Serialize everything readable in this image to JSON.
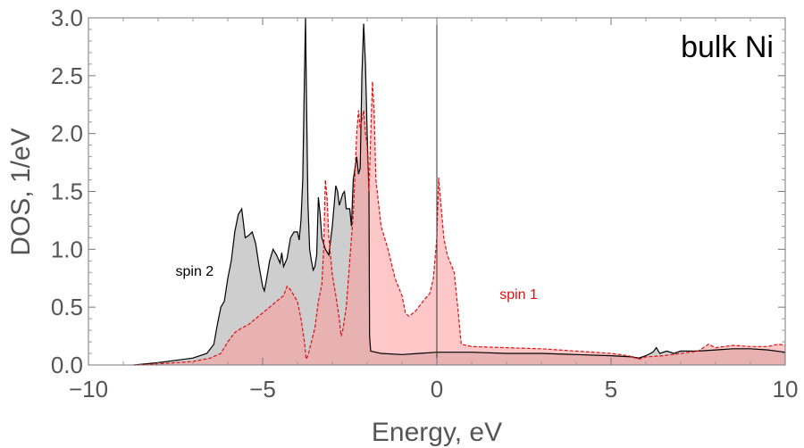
{
  "chart_data": {
    "type": "area",
    "title": "bulk Ni",
    "xlabel": "Energy, eV",
    "ylabel": "DOS, 1/eV",
    "xlim": [
      -10,
      10
    ],
    "ylim": [
      0,
      3.0
    ],
    "x_ticks": [
      -10,
      -5,
      0,
      5,
      10
    ],
    "x_tick_labels": [
      "−10",
      "−5",
      "0",
      "5",
      "10"
    ],
    "y_ticks": [
      0.0,
      0.5,
      1.0,
      1.5,
      2.0,
      2.5,
      3.0
    ],
    "y_tick_labels": [
      "0.0",
      "0.5",
      "1.0",
      "1.5",
      "2.0",
      "2.5",
      "3.0"
    ],
    "grid": false,
    "fermi_line_x": 0,
    "series": [
      {
        "name": "spin 2",
        "line_color": "#000000",
        "line_style": "solid",
        "fill_color": "#a6a6a6",
        "points": [
          [
            -8.7,
            0.0
          ],
          [
            -8.0,
            0.02
          ],
          [
            -7.5,
            0.04
          ],
          [
            -7.0,
            0.06
          ],
          [
            -6.6,
            0.1
          ],
          [
            -6.4,
            0.18
          ],
          [
            -6.3,
            0.35
          ],
          [
            -6.2,
            0.5
          ],
          [
            -6.1,
            0.55
          ],
          [
            -6.0,
            0.75
          ],
          [
            -5.9,
            0.9
          ],
          [
            -5.8,
            1.15
          ],
          [
            -5.7,
            1.3
          ],
          [
            -5.6,
            1.35
          ],
          [
            -5.5,
            1.1
          ],
          [
            -5.4,
            1.12
          ],
          [
            -5.3,
            1.15
          ],
          [
            -5.2,
            1.05
          ],
          [
            -5.1,
            0.85
          ],
          [
            -5.0,
            0.68
          ],
          [
            -4.95,
            0.64
          ],
          [
            -4.9,
            0.72
          ],
          [
            -4.8,
            0.9
          ],
          [
            -4.7,
            1.0
          ],
          [
            -4.6,
            0.95
          ],
          [
            -4.5,
            0.88
          ],
          [
            -4.45,
            0.97
          ],
          [
            -4.4,
            0.85
          ],
          [
            -4.3,
            0.92
          ],
          [
            -4.2,
            1.1
          ],
          [
            -4.1,
            1.15
          ],
          [
            -4.0,
            1.15
          ],
          [
            -3.95,
            1.08
          ],
          [
            -3.9,
            1.25
          ],
          [
            -3.85,
            1.6
          ],
          [
            -3.8,
            2.5
          ],
          [
            -3.77,
            3.0
          ],
          [
            -3.74,
            2.3
          ],
          [
            -3.7,
            1.4
          ],
          [
            -3.65,
            1.0
          ],
          [
            -3.6,
            0.9
          ],
          [
            -3.55,
            0.82
          ],
          [
            -3.5,
            0.85
          ],
          [
            -3.45,
            0.95
          ],
          [
            -3.4,
            1.45
          ],
          [
            -3.35,
            1.3
          ],
          [
            -3.3,
            1.1
          ],
          [
            -3.2,
            1.0
          ],
          [
            -3.1,
            0.95
          ],
          [
            -3.0,
            1.2
          ],
          [
            -2.9,
            1.55
          ],
          [
            -2.85,
            1.5
          ],
          [
            -2.8,
            1.38
          ],
          [
            -2.7,
            1.48
          ],
          [
            -2.65,
            1.5
          ],
          [
            -2.6,
            1.35
          ],
          [
            -2.5,
            1.35
          ],
          [
            -2.45,
            1.2
          ],
          [
            -2.4,
            1.6
          ],
          [
            -2.3,
            1.8
          ],
          [
            -2.25,
            1.65
          ],
          [
            -2.2,
            1.7
          ],
          [
            -2.15,
            2.5
          ],
          [
            -2.1,
            2.95
          ],
          [
            -2.05,
            2.6
          ],
          [
            -2.0,
            2.0
          ],
          [
            -1.95,
            1.5
          ],
          [
            -1.93,
            0.25
          ],
          [
            -1.9,
            0.12
          ],
          [
            -1.6,
            0.1
          ],
          [
            -1.0,
            0.09
          ],
          [
            -0.5,
            0.1
          ],
          [
            0.0,
            0.11
          ],
          [
            0.5,
            0.11
          ],
          [
            1.0,
            0.11
          ],
          [
            2.0,
            0.1
          ],
          [
            3.0,
            0.1
          ],
          [
            4.0,
            0.09
          ],
          [
            5.0,
            0.08
          ],
          [
            5.6,
            0.07
          ],
          [
            5.8,
            0.06
          ],
          [
            6.0,
            0.08
          ],
          [
            6.2,
            0.11
          ],
          [
            6.3,
            0.15
          ],
          [
            6.4,
            0.1
          ],
          [
            6.6,
            0.12
          ],
          [
            6.8,
            0.1
          ],
          [
            7.0,
            0.12
          ],
          [
            7.5,
            0.12
          ],
          [
            8.0,
            0.13
          ],
          [
            8.5,
            0.14
          ],
          [
            9.0,
            0.14
          ],
          [
            9.5,
            0.13
          ],
          [
            10.0,
            0.11
          ]
        ]
      },
      {
        "name": "spin 1",
        "line_color": "#e01010",
        "line_style": "dashed",
        "fill_color": "#ff9a9a",
        "points": [
          [
            -8.7,
            0.0
          ],
          [
            -8.0,
            0.01
          ],
          [
            -7.0,
            0.03
          ],
          [
            -6.5,
            0.06
          ],
          [
            -6.2,
            0.1
          ],
          [
            -6.0,
            0.2
          ],
          [
            -5.8,
            0.28
          ],
          [
            -5.6,
            0.32
          ],
          [
            -5.4,
            0.35
          ],
          [
            -5.2,
            0.4
          ],
          [
            -5.0,
            0.45
          ],
          [
            -4.8,
            0.5
          ],
          [
            -4.6,
            0.55
          ],
          [
            -4.4,
            0.6
          ],
          [
            -4.3,
            0.68
          ],
          [
            -4.2,
            0.65
          ],
          [
            -4.1,
            0.6
          ],
          [
            -4.0,
            0.55
          ],
          [
            -3.9,
            0.4
          ],
          [
            -3.8,
            0.2
          ],
          [
            -3.75,
            0.05
          ],
          [
            -3.7,
            0.08
          ],
          [
            -3.6,
            0.2
          ],
          [
            -3.5,
            0.32
          ],
          [
            -3.4,
            0.55
          ],
          [
            -3.3,
            0.7
          ],
          [
            -3.25,
            1.0
          ],
          [
            -3.2,
            1.6
          ],
          [
            -3.15,
            1.45
          ],
          [
            -3.1,
            1.1
          ],
          [
            -3.0,
            0.78
          ],
          [
            -2.9,
            0.6
          ],
          [
            -2.8,
            0.4
          ],
          [
            -2.75,
            0.25
          ],
          [
            -2.7,
            0.3
          ],
          [
            -2.6,
            0.5
          ],
          [
            -2.5,
            0.9
          ],
          [
            -2.4,
            1.3
          ],
          [
            -2.3,
            2.0
          ],
          [
            -2.25,
            2.2
          ],
          [
            -2.2,
            2.05
          ],
          [
            -2.1,
            2.2
          ],
          [
            -2.05,
            2.0
          ],
          [
            -2.0,
            1.9
          ],
          [
            -1.95,
            1.5
          ],
          [
            -1.85,
            2.45
          ],
          [
            -1.8,
            2.2
          ],
          [
            -1.75,
            1.6
          ],
          [
            -1.6,
            1.2
          ],
          [
            -1.4,
            1.0
          ],
          [
            -1.2,
            0.75
          ],
          [
            -1.0,
            0.6
          ],
          [
            -0.9,
            0.45
          ],
          [
            -0.8,
            0.42
          ],
          [
            -0.6,
            0.47
          ],
          [
            -0.4,
            0.55
          ],
          [
            -0.2,
            0.62
          ],
          [
            -0.1,
            0.75
          ],
          [
            0.0,
            1.1
          ],
          [
            0.05,
            1.62
          ],
          [
            0.1,
            1.45
          ],
          [
            0.2,
            1.1
          ],
          [
            0.3,
            0.95
          ],
          [
            0.5,
            0.8
          ],
          [
            0.6,
            0.5
          ],
          [
            0.7,
            0.18
          ],
          [
            1.0,
            0.16
          ],
          [
            2.0,
            0.15
          ],
          [
            3.0,
            0.14
          ],
          [
            4.0,
            0.12
          ],
          [
            5.0,
            0.1
          ],
          [
            5.5,
            0.08
          ],
          [
            5.8,
            0.05
          ],
          [
            6.0,
            0.07
          ],
          [
            6.5,
            0.08
          ],
          [
            7.0,
            0.1
          ],
          [
            7.5,
            0.12
          ],
          [
            7.8,
            0.18
          ],
          [
            8.0,
            0.15
          ],
          [
            8.5,
            0.17
          ],
          [
            9.0,
            0.16
          ],
          [
            9.5,
            0.16
          ],
          [
            9.8,
            0.18
          ],
          [
            10.0,
            0.17
          ]
        ]
      }
    ],
    "annotations": [
      {
        "text": "spin 2",
        "x": -7.5,
        "y": 0.77,
        "color": "#000000"
      },
      {
        "text": "spin 1",
        "x": 1.8,
        "y": 0.57,
        "color": "#e01010"
      }
    ]
  }
}
